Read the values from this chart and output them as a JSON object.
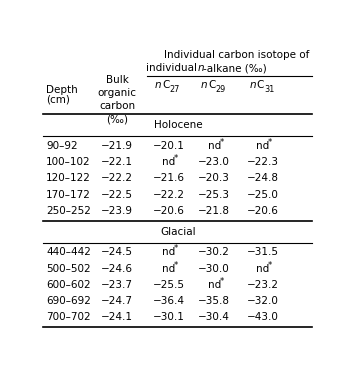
{
  "title_line1": "Individual carbon isotope of",
  "title_line2_pre": "individual ",
  "title_line2_italic": "n",
  "title_line2_post": "-alkane (‰)",
  "section1_label": "Holocene",
  "section1_rows": [
    [
      "90–92",
      "−21.9",
      "−20.1",
      "nd*",
      "nd*"
    ],
    [
      "100–102",
      "−22.1",
      "nd*",
      "−23.0",
      "−22.3"
    ],
    [
      "120–122",
      "−22.2",
      "−21.6",
      "−20.3",
      "−24.8"
    ],
    [
      "170–172",
      "−22.5",
      "−22.2",
      "−25.3",
      "−25.0"
    ],
    [
      "250–252",
      "−23.9",
      "−20.6",
      "−21.8",
      "−20.6"
    ]
  ],
  "section2_label": "Glacial",
  "section2_rows": [
    [
      "440–442",
      "−24.5",
      "nd*",
      "−30.2",
      "−31.5"
    ],
    [
      "500–502",
      "−24.6",
      "nd*",
      "−30.0",
      "nd*"
    ],
    [
      "600–602",
      "−23.7",
      "−25.5",
      "nd*",
      "−23.2"
    ],
    [
      "690–692",
      "−24.7",
      "−36.4",
      "−35.8",
      "−32.0"
    ],
    [
      "700–702",
      "−24.1",
      "−30.1",
      "−30.4",
      "−43.0"
    ]
  ],
  "col_subs": [
    "27",
    "29",
    "31"
  ],
  "bg_color": "#ffffff",
  "text_color": "#000000",
  "fs": 7.5
}
